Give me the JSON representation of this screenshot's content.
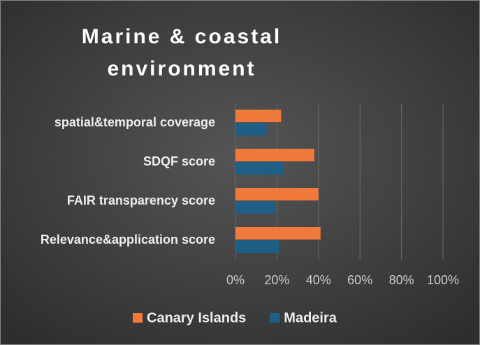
{
  "chart_data": {
    "type": "bar",
    "orientation": "horizontal",
    "title": "Marine & coastal environment",
    "categories": [
      "spatial&temporal coverage",
      "SDQF score",
      "FAIR transparency score",
      "Relevance&application score"
    ],
    "series": [
      {
        "name": "Canary Islands",
        "color": "#f07a3c",
        "values": [
          22,
          38,
          40,
          41
        ]
      },
      {
        "name": "Madeira",
        "color": "#1f5f86",
        "values": [
          15,
          23,
          19,
          21
        ]
      }
    ],
    "xlim": [
      0,
      100
    ],
    "xticks": [
      {
        "value": 0,
        "label": "0%"
      },
      {
        "value": 20,
        "label": "20%"
      },
      {
        "value": 40,
        "label": "40%"
      },
      {
        "value": 60,
        "label": "60%"
      },
      {
        "value": 80,
        "label": "80%"
      },
      {
        "value": 100,
        "label": "100%"
      }
    ],
    "grid": true,
    "legend": "bottom"
  }
}
